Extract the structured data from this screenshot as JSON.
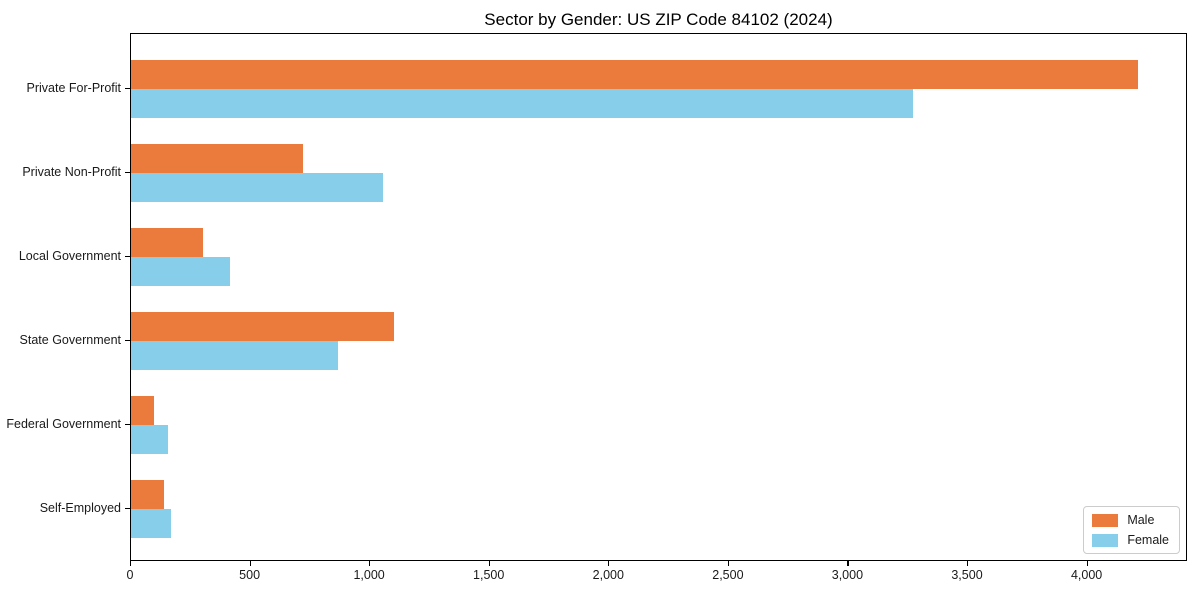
{
  "chart_data": {
    "type": "bar",
    "orientation": "horizontal",
    "title": "Sector by Gender: US ZIP Code 84102 (2024)",
    "categories": [
      "Private For-Profit",
      "Private Non-Profit",
      "Local Government",
      "State Government",
      "Federal Government",
      "Self-Employed"
    ],
    "series": [
      {
        "name": "Male",
        "color": "#EB7B3C",
        "values": [
          4210,
          720,
          302,
          1098,
          97,
          139
        ]
      },
      {
        "name": "Female",
        "color": "#87CEEB",
        "values": [
          3270,
          1055,
          413,
          864,
          156,
          168
        ]
      }
    ],
    "xlabel": "",
    "ylabel": "",
    "xlim": [
      0,
      4420
    ],
    "x_ticks": [
      0,
      500,
      1000,
      1500,
      2000,
      2500,
      3000,
      3500,
      4000
    ],
    "x_tick_labels": [
      "0",
      "500",
      "1,000",
      "1,500",
      "2,000",
      "2,500",
      "3,000",
      "3,500",
      "4,000"
    ],
    "grid": false,
    "legend_position": "lower right",
    "background_color": "#ffffff",
    "axis_color": "#000000"
  }
}
